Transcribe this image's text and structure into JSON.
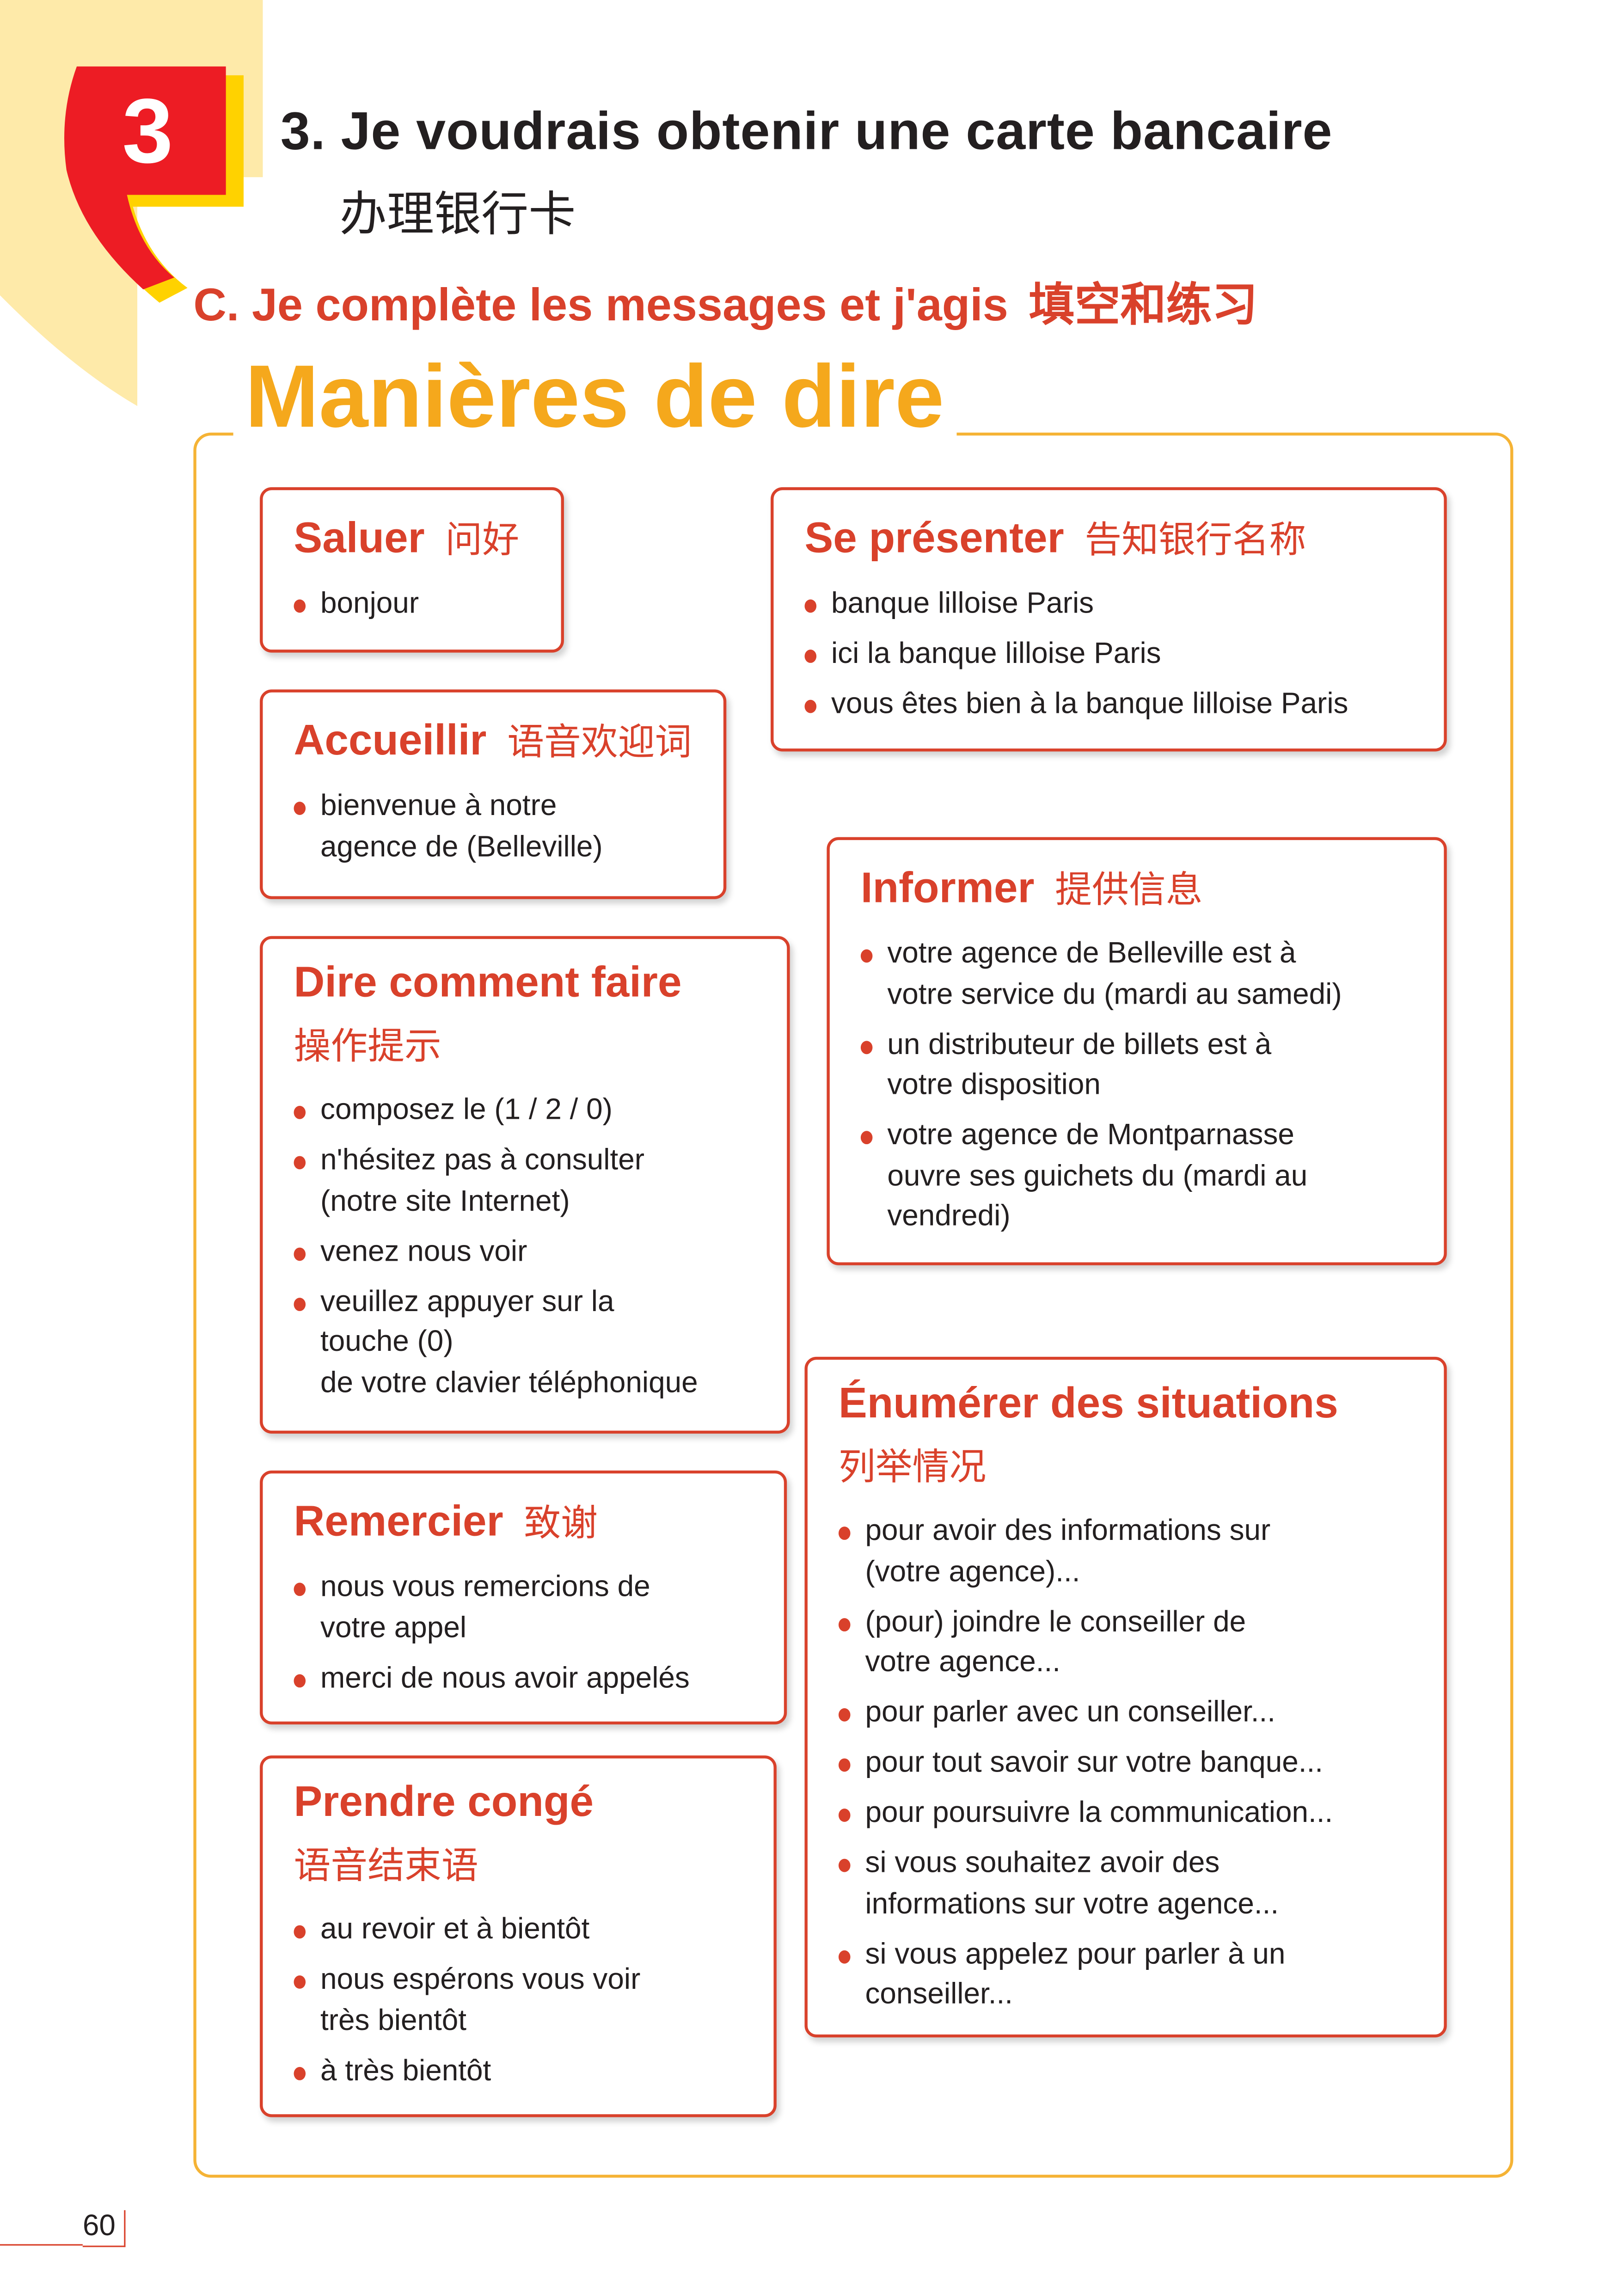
{
  "unit_number": "3",
  "colors": {
    "red": "#d9412b",
    "badge_red": "#ed1c24",
    "orange": "#f5a81c",
    "cream": "#feeaa9",
    "yellow": "#ffd200"
  },
  "header": {
    "title": "3. Je voudrais obtenir une carte bancaire",
    "title_cn": "办理银行卡",
    "section": "C. Je complète les messages et j'agis",
    "section_cn": "填空和练习"
  },
  "main_title": "Manières de dire",
  "cards": [
    {
      "title": "Saluer",
      "title_cn": "问好",
      "items": [
        "bonjour"
      ]
    },
    {
      "title": "Accueillir",
      "title_cn": "语音欢迎词",
      "items": [
        "bienvenue à notre\nagence de (Belleville)"
      ]
    },
    {
      "title": "Dire comment faire",
      "title_cn": "操作提示",
      "items": [
        "composez le (1 / 2 / 0)",
        "n'hésitez pas à consulter\n(notre site Internet)",
        "venez nous voir",
        "veuillez appuyer sur la\ntouche (0)\nde votre clavier téléphonique"
      ]
    },
    {
      "title": "Remercier",
      "title_cn": "致谢",
      "items": [
        "nous vous remercions de\nvotre appel",
        "merci de nous avoir appelés"
      ]
    },
    {
      "title": "Prendre congé",
      "title_cn": "语音结束语",
      "items": [
        "au revoir et à bientôt",
        "nous espérons vous voir\ntrès bientôt",
        "à très bientôt"
      ]
    },
    {
      "title": "Se présenter",
      "title_cn": "告知银行名称",
      "items": [
        "banque lilloise Paris",
        "ici la banque lilloise Paris",
        "vous êtes bien à la banque lilloise Paris"
      ]
    },
    {
      "title": "Informer",
      "title_cn": "提供信息",
      "items": [
        "votre agence de Belleville est à\nvotre service du (mardi au samedi)",
        "un distributeur de billets est à\nvotre disposition",
        "votre agence de Montparnasse\nouvre ses guichets du (mardi au\nvendredi)"
      ]
    },
    {
      "title": "Énumérer des situations",
      "title_cn": "列举情况",
      "items": [
        "pour avoir des informations sur\n(votre agence)...",
        "(pour) joindre le conseiller de\nvotre agence...",
        "pour parler avec un conseiller...",
        "pour tout savoir sur votre banque...",
        "pour poursuivre la communication...",
        "si vous souhaitez avoir des\ninformations sur votre agence...",
        "si vous appelez pour parler à un\nconseiller..."
      ]
    }
  ],
  "page_number": "60"
}
